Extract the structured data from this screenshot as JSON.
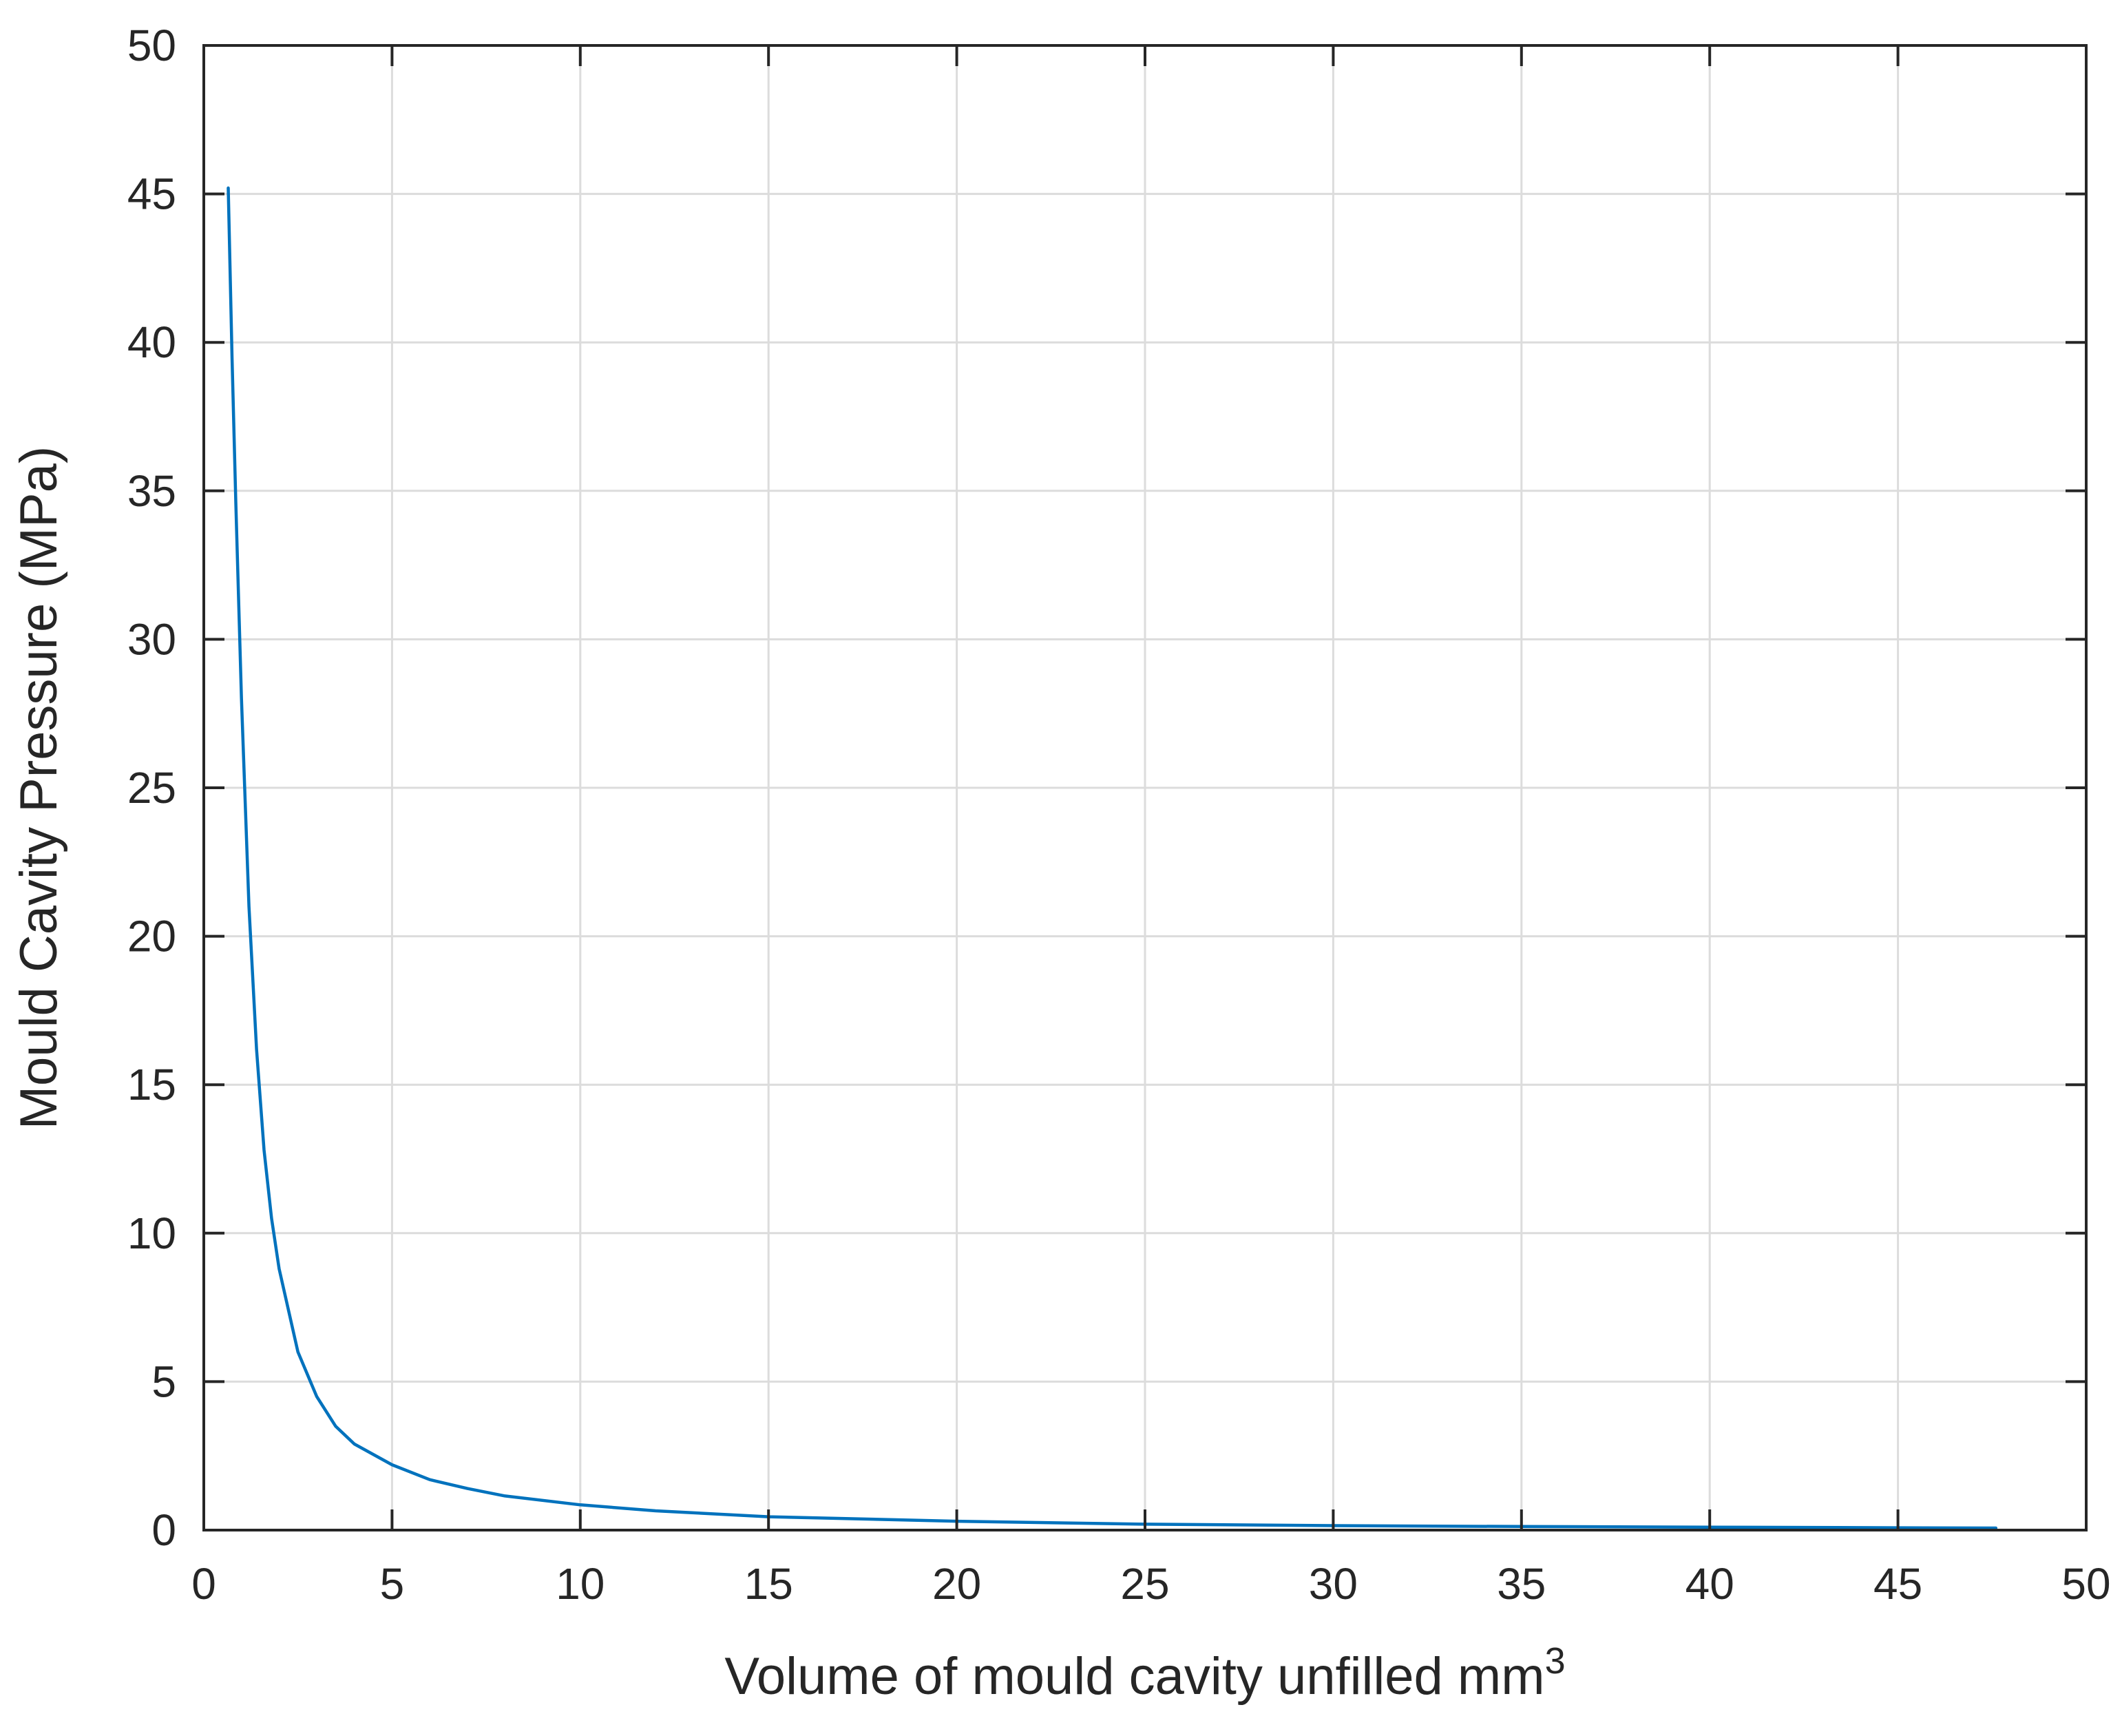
{
  "chart_data": {
    "type": "line",
    "title": "",
    "xlabel": "Volume of mould cavity unfilled mm",
    "xlabel_superscript": "3",
    "ylabel": "Mould Cavity Pressure (MPa)",
    "xlim": [
      0,
      50
    ],
    "ylim": [
      0,
      50
    ],
    "xticks": [
      "0",
      "5",
      "10",
      "15",
      "20",
      "25",
      "30",
      "35",
      "40",
      "45",
      "50"
    ],
    "yticks": [
      "0",
      "5",
      "10",
      "15",
      "20",
      "25",
      "30",
      "35",
      "40",
      "45",
      "50"
    ],
    "grid": true,
    "legend": "none",
    "colors": {
      "series": "#0072BD",
      "frame": "#262626",
      "grid": "#dcdcdc"
    },
    "series": [
      {
        "color": "#0072BD",
        "x": [
          0.65,
          0.75,
          0.85,
          1.0,
          1.2,
          1.4,
          1.6,
          1.8,
          2.0,
          2.5,
          3.0,
          3.5,
          4.0,
          5.0,
          6.0,
          7.0,
          8.0,
          10.0,
          12.0,
          15.0,
          20.0,
          25.0,
          30.0,
          35.0,
          40.0,
          45.0,
          47.6
        ],
        "y": [
          45.2,
          39.5,
          34.6,
          28.0,
          21.0,
          16.2,
          12.8,
          10.5,
          8.8,
          6.0,
          4.5,
          3.5,
          2.9,
          2.2,
          1.7,
          1.4,
          1.15,
          0.85,
          0.65,
          0.45,
          0.3,
          0.2,
          0.15,
          0.12,
          0.1,
          0.08,
          0.07
        ]
      }
    ]
  }
}
